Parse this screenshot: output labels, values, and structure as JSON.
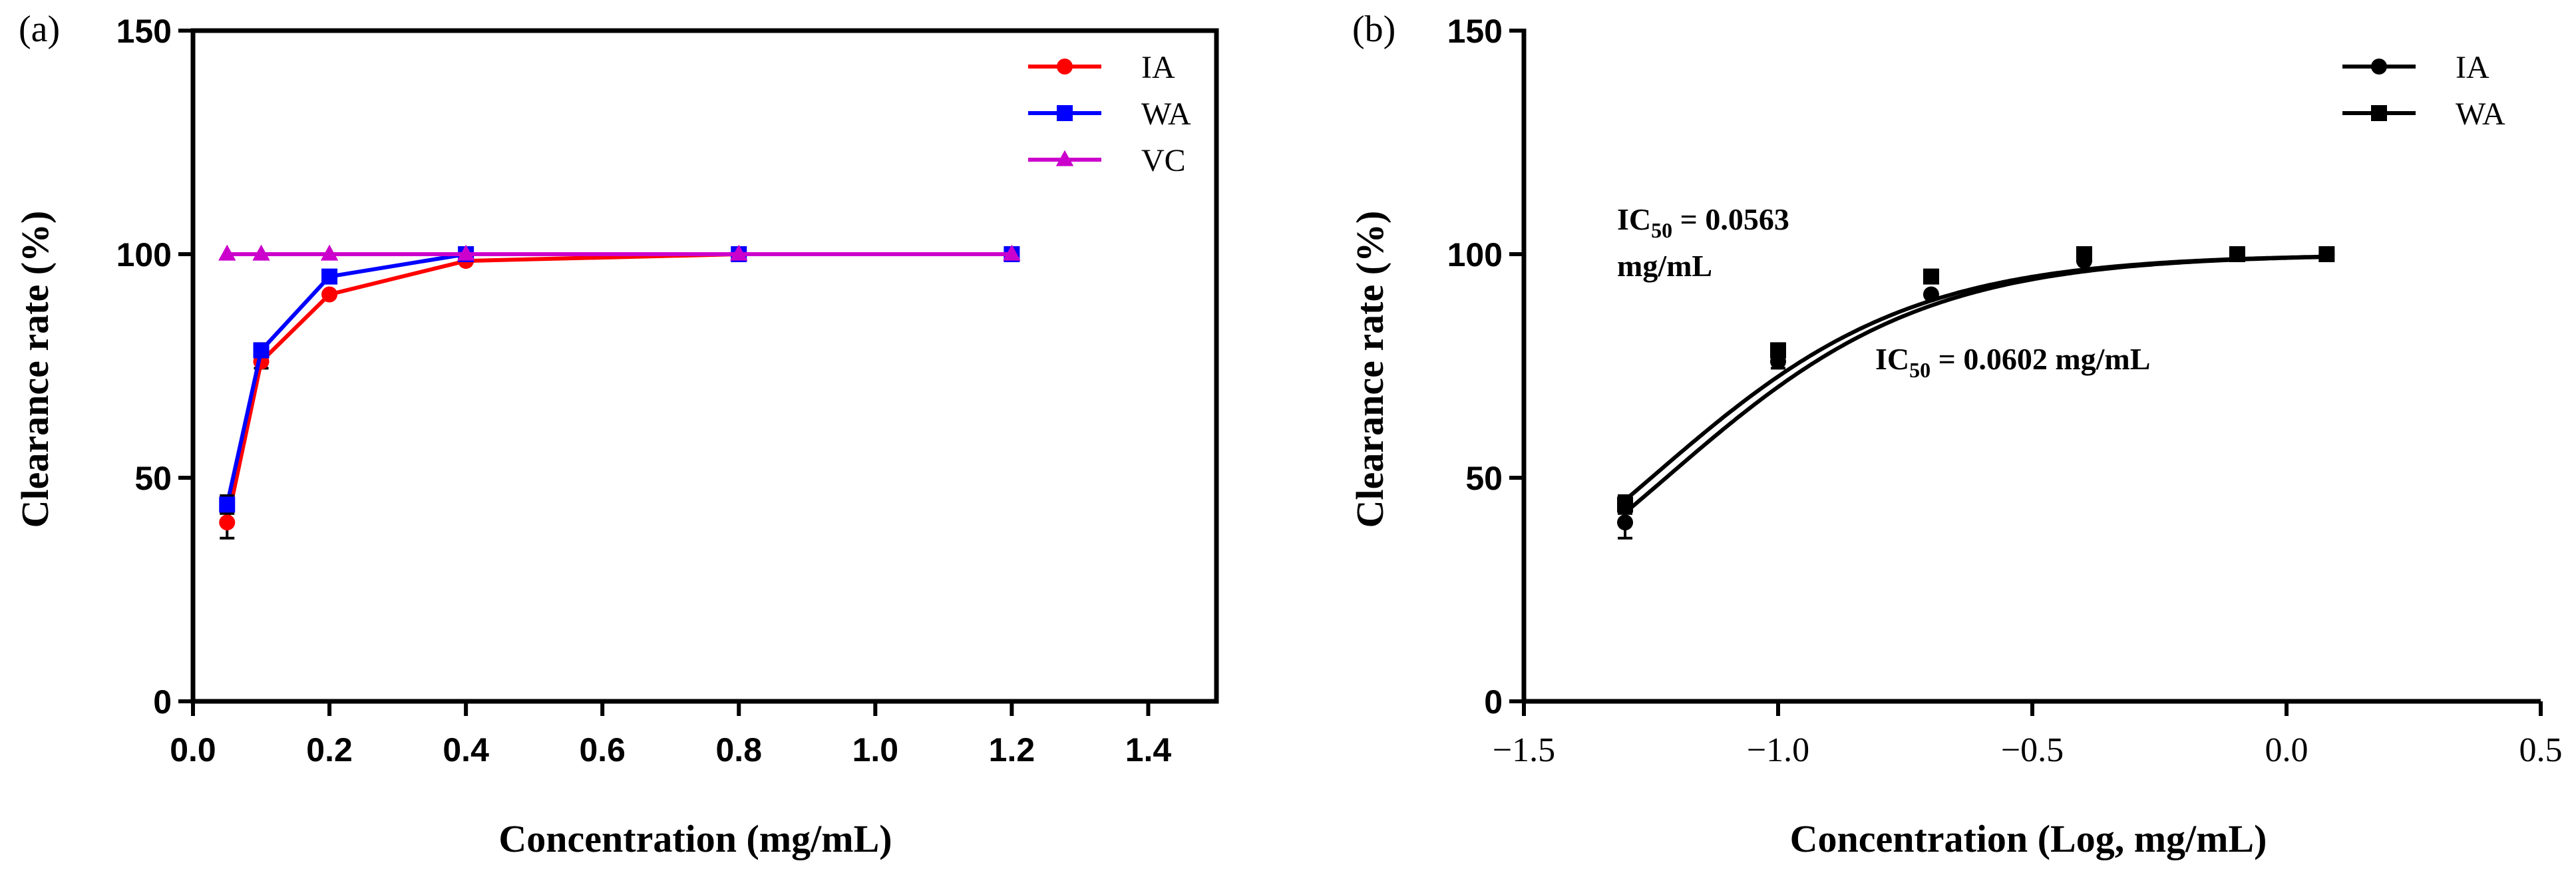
{
  "chart_data": [
    {
      "panel": "(a)",
      "type": "line",
      "xlabel": "Concentration (mg/mL)",
      "ylabel": "Clearance rate (%)",
      "xlim": [
        0.0,
        1.5
      ],
      "ylim": [
        0,
        150
      ],
      "xticks": [
        0.0,
        0.2,
        0.4,
        0.6,
        0.8,
        1.0,
        1.2,
        1.4
      ],
      "xtick_labels": [
        "0.0",
        "0.2",
        "0.4",
        "0.6",
        "0.8",
        "1.0",
        "1.2",
        "1.4"
      ],
      "yticks": [
        0,
        50,
        100,
        150
      ],
      "ytick_labels": [
        "0",
        "50",
        "100",
        "150"
      ],
      "legend_position": "top-right",
      "series": [
        {
          "name": "IA",
          "color": "#ff0000",
          "marker": "circle",
          "x": [
            0.05,
            0.1,
            0.2,
            0.4,
            0.8,
            1.2
          ],
          "y": [
            40,
            76,
            91,
            98.5,
            100,
            100
          ],
          "err": [
            3.5,
            1.5,
            0,
            0,
            0,
            0
          ]
        },
        {
          "name": "WA",
          "color": "#0000ff",
          "marker": "square",
          "x": [
            0.05,
            0.1,
            0.2,
            0.4,
            0.8,
            1.2
          ],
          "y": [
            44,
            78.5,
            95,
            100,
            100,
            100
          ],
          "err": [
            2,
            1.5,
            0,
            0,
            0,
            0
          ]
        },
        {
          "name": "VC",
          "color": "#cc00cc",
          "marker": "triangle",
          "x": [
            0.05,
            0.1,
            0.2,
            0.4,
            0.8,
            1.2
          ],
          "y": [
            100,
            100,
            100,
            100,
            100,
            100
          ],
          "err": [
            0,
            0,
            0,
            0,
            0,
            0
          ]
        }
      ]
    },
    {
      "panel": "(b)",
      "type": "scatter",
      "xlabel": "Concentration (Log, mg/mL)",
      "ylabel": "Clearance rate (%)",
      "xlim": [
        -1.5,
        0.5
      ],
      "ylim": [
        0,
        150
      ],
      "xticks": [
        -1.5,
        -1.0,
        -0.5,
        0.0,
        0.5
      ],
      "xtick_labels": [
        "−1.5",
        "−1.0",
        "−0.5",
        "0.0",
        "0.5"
      ],
      "yticks": [
        0,
        50,
        100,
        150
      ],
      "ytick_labels": [
        "0",
        "50",
        "100",
        "150"
      ],
      "legend_position": "top-right",
      "series": [
        {
          "name": "IA",
          "color": "#000000",
          "marker": "circle",
          "x": [
            -1.301,
            -1.0,
            -0.699,
            -0.398,
            -0.097,
            0.079
          ],
          "y": [
            40,
            76,
            91,
            98.5,
            100,
            100
          ],
          "err": [
            3.5,
            1.5,
            0,
            0,
            0,
            0
          ],
          "ic50_log": -1.2204
        },
        {
          "name": "WA",
          "color": "#000000",
          "marker": "square",
          "x": [
            -1.301,
            -1.0,
            -0.699,
            -0.398,
            -0.097,
            0.079
          ],
          "y": [
            44,
            78.5,
            95,
            100,
            100,
            100
          ],
          "err": [
            2,
            1.5,
            0,
            0,
            0,
            0
          ],
          "ic50_log": -1.2495
        }
      ],
      "annotations": [
        {
          "prefix": "IC",
          "sub": "50",
          "text": " = 0.0563",
          "line2": "mg/mL"
        },
        {
          "prefix": "IC",
          "sub": "50",
          "text": " = 0.0602 mg/mL"
        }
      ]
    }
  ]
}
